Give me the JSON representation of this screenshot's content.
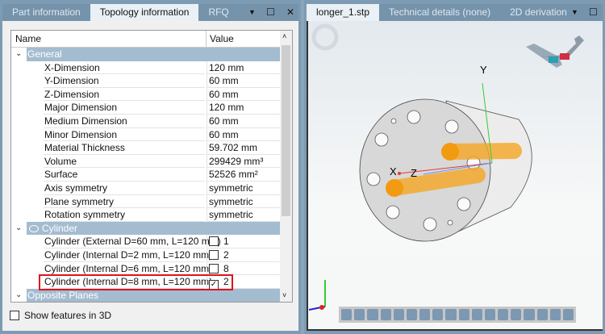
{
  "left_panel": {
    "tabs": [
      "Part information",
      "Topology information",
      "RFQ"
    ],
    "active_tab": "Topology information",
    "columns": {
      "name": "Name",
      "value": "Value"
    },
    "groups": [
      {
        "name": "General",
        "rows": [
          {
            "name": "X-Dimension",
            "value": "120 mm"
          },
          {
            "name": "Y-Dimension",
            "value": "60 mm"
          },
          {
            "name": "Z-Dimension",
            "value": "60 mm"
          },
          {
            "name": "Major Dimension",
            "value": "120 mm"
          },
          {
            "name": "Medium Dimension",
            "value": "60 mm"
          },
          {
            "name": "Minor Dimension",
            "value": "60 mm"
          },
          {
            "name": "Material Thickness",
            "value": "59.702 mm"
          },
          {
            "name": "Volume",
            "value": "299429 mm³"
          },
          {
            "name": "Surface",
            "value": "52526 mm²"
          },
          {
            "name": "Axis symmetry",
            "value": "symmetric"
          },
          {
            "name": "Plane symmetry",
            "value": "symmetric"
          },
          {
            "name": "Rotation symmetry",
            "value": "symmetric"
          }
        ]
      },
      {
        "name": "Cylinder",
        "icon": "cylinder-icon",
        "rows": [
          {
            "name": "Cylinder (External D=60 mm, L=120 mm)",
            "value": "1",
            "checked": false
          },
          {
            "name": "Cylinder (Internal D=2 mm, L=120 mm)",
            "value": "2",
            "checked": false
          },
          {
            "name": "Cylinder (Internal D=6 mm, L=120 mm)",
            "value": "8",
            "checked": false
          },
          {
            "name": "Cylinder (Internal D=8 mm, L=120 mm)",
            "value": "2",
            "checked": true,
            "highlighted": true
          }
        ]
      },
      {
        "name": "Opposite Planes",
        "rows": []
      }
    ],
    "show_features_label": "Show features in 3D",
    "show_features_checked": false
  },
  "right_panel": {
    "tabs": [
      "longer_1.stp",
      "Technical details (none)",
      "2D derivation"
    ],
    "active_tab": "longer_1.stp",
    "axis_labels": {
      "x": "X",
      "y": "Y",
      "z": "Z"
    },
    "highlight_color": "#f5a623"
  }
}
